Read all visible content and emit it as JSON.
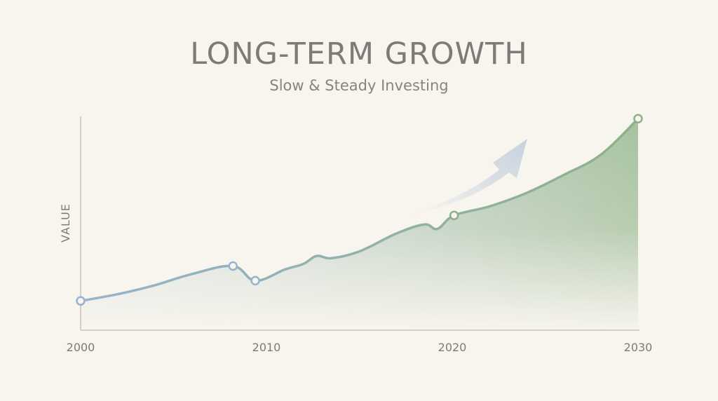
{
  "chart_data": {
    "type": "area",
    "title": "LONG-TERM GROWTH",
    "subtitle": "Slow & Steady Investing",
    "xlabel": "",
    "ylabel": "VALUE",
    "xlim": [
      2000,
      2030
    ],
    "ylim": [
      0,
      100
    ],
    "x_ticks": [
      "2000",
      "2010",
      "2020",
      "2030"
    ],
    "grid": false,
    "series": [
      {
        "x": [
          2000,
          2002,
          2004,
          2006,
          2008.2,
          2009.4,
          2011,
          2012,
          2012.7,
          2013.5,
          2015,
          2017,
          2018.5,
          2019.2,
          2020.1,
          2022,
          2024,
          2026,
          2028,
          2030
        ],
        "values": [
          13,
          16,
          20,
          25,
          28.5,
          22,
          27,
          29.5,
          33,
          32,
          35,
          43,
          47,
          45,
          51,
          55,
          61,
          69,
          78,
          94
        ]
      }
    ],
    "highlighted_points_x": [
      2000,
      2008.2,
      2009.4,
      2020.1,
      2030
    ],
    "annotation": "upward-arrow",
    "colors": {
      "line_start": "#95b3cc",
      "line_end": "#8fb08a",
      "fill_start": "#c6d3df",
      "fill_end": "#9fbd98",
      "axis": "#bdbab3",
      "text": "#7c7b77"
    }
  }
}
